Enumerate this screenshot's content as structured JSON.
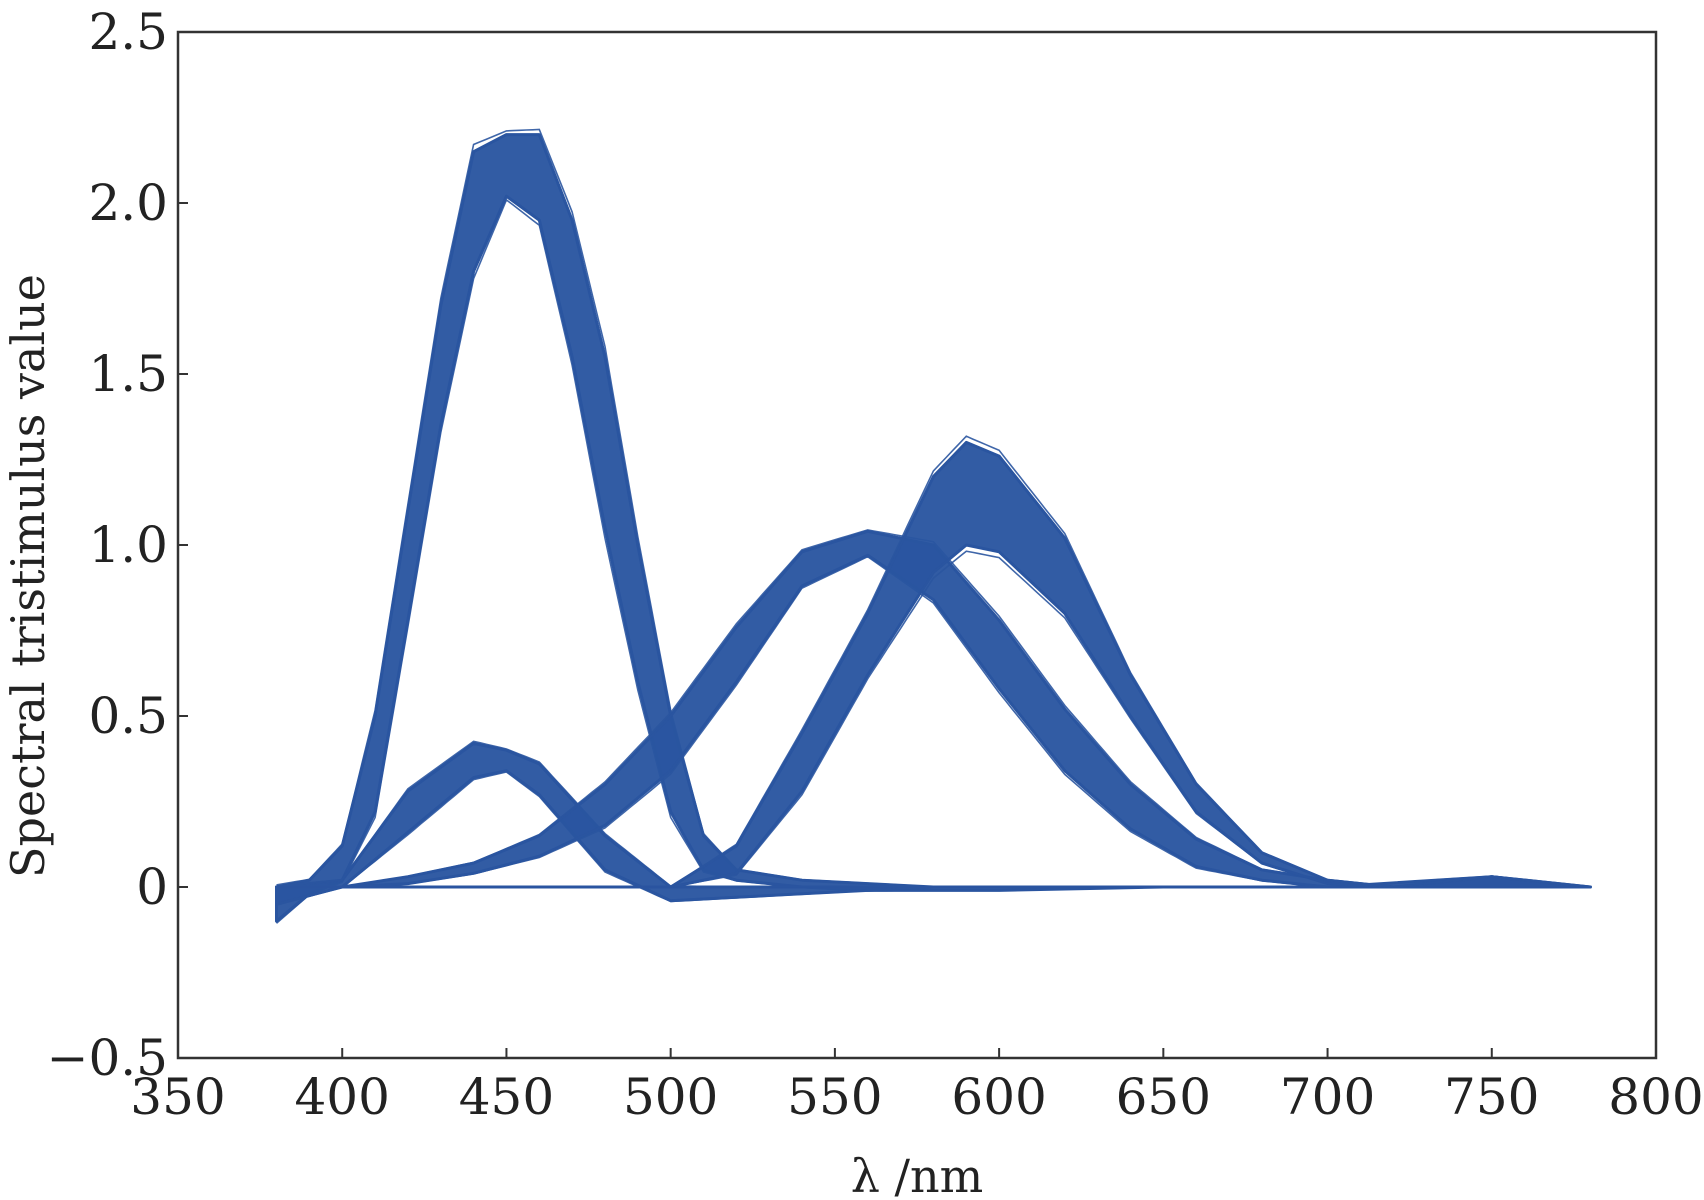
{
  "chart_data": {
    "type": "line",
    "title": "",
    "xlabel": "λ /nm",
    "ylabel": "Spectral tristimulus value",
    "xlim": [
      350,
      800
    ],
    "ylim": [
      -0.5,
      2.5
    ],
    "x_ticks": [
      350,
      400,
      450,
      500,
      550,
      600,
      650,
      700,
      750,
      800
    ],
    "y_ticks": [
      -0.5,
      0,
      0.5,
      1.0,
      1.5,
      2.0,
      2.5
    ],
    "y_tick_labels": [
      "−0.5",
      "0",
      "0.5",
      "1.0",
      "1.5",
      "2.0",
      "2.5"
    ],
    "grid": false,
    "legend": "none",
    "line_color": "#2a55a0",
    "series": [
      {
        "x": [
          380,
          390,
          400,
          410,
          420,
          430,
          440,
          450,
          460,
          470,
          480,
          490,
          500,
          510,
          520,
          540,
          560,
          580,
          600,
          650,
          700,
          750,
          780
        ],
        "upper": [
          0.0,
          0.02,
          0.12,
          0.5,
          1.1,
          1.7,
          2.15,
          2.2,
          2.2,
          1.95,
          1.55,
          1.0,
          0.5,
          0.15,
          0.05,
          0.02,
          0.01,
          0.0,
          0.0,
          0.0,
          0.0,
          0.0,
          0.0
        ],
        "lower": [
          -0.1,
          -0.02,
          0.02,
          0.22,
          0.78,
          1.35,
          1.8,
          2.02,
          1.95,
          1.55,
          1.05,
          0.6,
          0.22,
          0.05,
          0.02,
          0.0,
          -0.01,
          -0.01,
          -0.01,
          0.0,
          0.0,
          0.0,
          0.0
        ]
      },
      {
        "x": [
          380,
          400,
          420,
          440,
          450,
          460,
          480,
          500,
          520,
          540,
          560,
          580,
          600,
          650,
          700,
          750,
          780
        ],
        "upper": [
          0.0,
          0.02,
          0.28,
          0.42,
          0.4,
          0.36,
          0.15,
          0.0,
          0.0,
          0.0,
          0.0,
          0.0,
          0.0,
          0.0,
          0.0,
          0.03,
          0.0
        ],
        "lower": [
          -0.05,
          0.0,
          0.16,
          0.32,
          0.34,
          0.27,
          0.05,
          -0.04,
          -0.03,
          -0.02,
          -0.01,
          0.0,
          0.0,
          0.0,
          0.0,
          0.0,
          0.0
        ]
      },
      {
        "x": [
          380,
          400,
          420,
          440,
          460,
          480,
          500,
          520,
          540,
          560,
          580,
          600,
          620,
          640,
          660,
          680,
          700,
          720,
          750,
          780
        ],
        "upper": [
          0.0,
          0.0,
          0.03,
          0.07,
          0.15,
          0.3,
          0.5,
          0.76,
          0.98,
          1.04,
          1.0,
          0.78,
          0.52,
          0.3,
          0.14,
          0.05,
          0.02,
          0.0,
          0.0,
          0.0
        ],
        "lower": [
          0.0,
          0.0,
          0.01,
          0.04,
          0.09,
          0.18,
          0.34,
          0.6,
          0.88,
          0.97,
          0.84,
          0.58,
          0.34,
          0.17,
          0.06,
          0.02,
          0.0,
          0.0,
          0.0,
          0.0
        ]
      },
      {
        "x": [
          380,
          440,
          480,
          500,
          520,
          540,
          560,
          580,
          590,
          600,
          620,
          640,
          660,
          680,
          700,
          720,
          750,
          780
        ],
        "upper": [
          0.0,
          0.0,
          0.0,
          0.0,
          0.12,
          0.45,
          0.8,
          1.2,
          1.3,
          1.26,
          1.02,
          0.62,
          0.3,
          0.1,
          0.02,
          0.0,
          0.03,
          0.0
        ],
        "lower": [
          0.0,
          0.0,
          0.0,
          0.0,
          0.04,
          0.28,
          0.62,
          0.92,
          1.0,
          0.98,
          0.8,
          0.5,
          0.22,
          0.07,
          0.01,
          0.0,
          0.0,
          0.0
        ]
      }
    ]
  }
}
